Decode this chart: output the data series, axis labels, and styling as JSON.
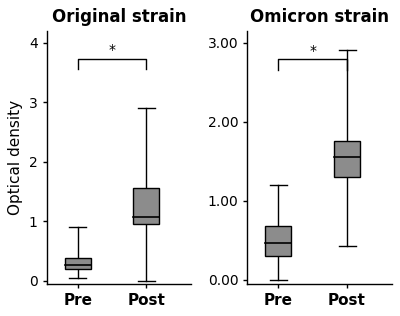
{
  "left_title": "Original strain",
  "right_title": "Omicron strain",
  "ylabel": "Optical density",
  "background_color": "#ffffff",
  "box_color": "#8c8c8c",
  "box_edge_color": "#000000",
  "left": {
    "pre": {
      "whisker_low": 0.05,
      "q1": 0.2,
      "median": 0.27,
      "q3": 0.38,
      "whisker_high": 0.9
    },
    "post": {
      "whisker_low": 0.0,
      "q1": 0.95,
      "median": 1.07,
      "q3": 1.55,
      "whisker_high": 2.9
    },
    "ylim": [
      -0.05,
      4.2
    ],
    "yticks": [
      0,
      1,
      2,
      3,
      4
    ],
    "yticklabels": [
      "0",
      "1",
      "2",
      "3",
      "4"
    ]
  },
  "right": {
    "pre": {
      "whisker_low": 0.0,
      "q1": 0.3,
      "median": 0.47,
      "q3": 0.68,
      "whisker_high": 1.2
    },
    "post": {
      "whisker_low": 0.42,
      "q1": 1.3,
      "median": 1.55,
      "q3": 1.75,
      "whisker_high": 2.9
    },
    "ylim": [
      -0.05,
      3.15
    ],
    "yticks": [
      0.0,
      1.0,
      2.0,
      3.0
    ],
    "yticklabels": [
      "0.00",
      "1.00",
      "2.00",
      "3.00"
    ]
  },
  "xlabel_pre": "Pre",
  "xlabel_post": "Post",
  "sig_text": "*",
  "box_width": 0.38,
  "title_fontsize": 12,
  "label_fontsize": 11,
  "tick_fontsize": 10
}
